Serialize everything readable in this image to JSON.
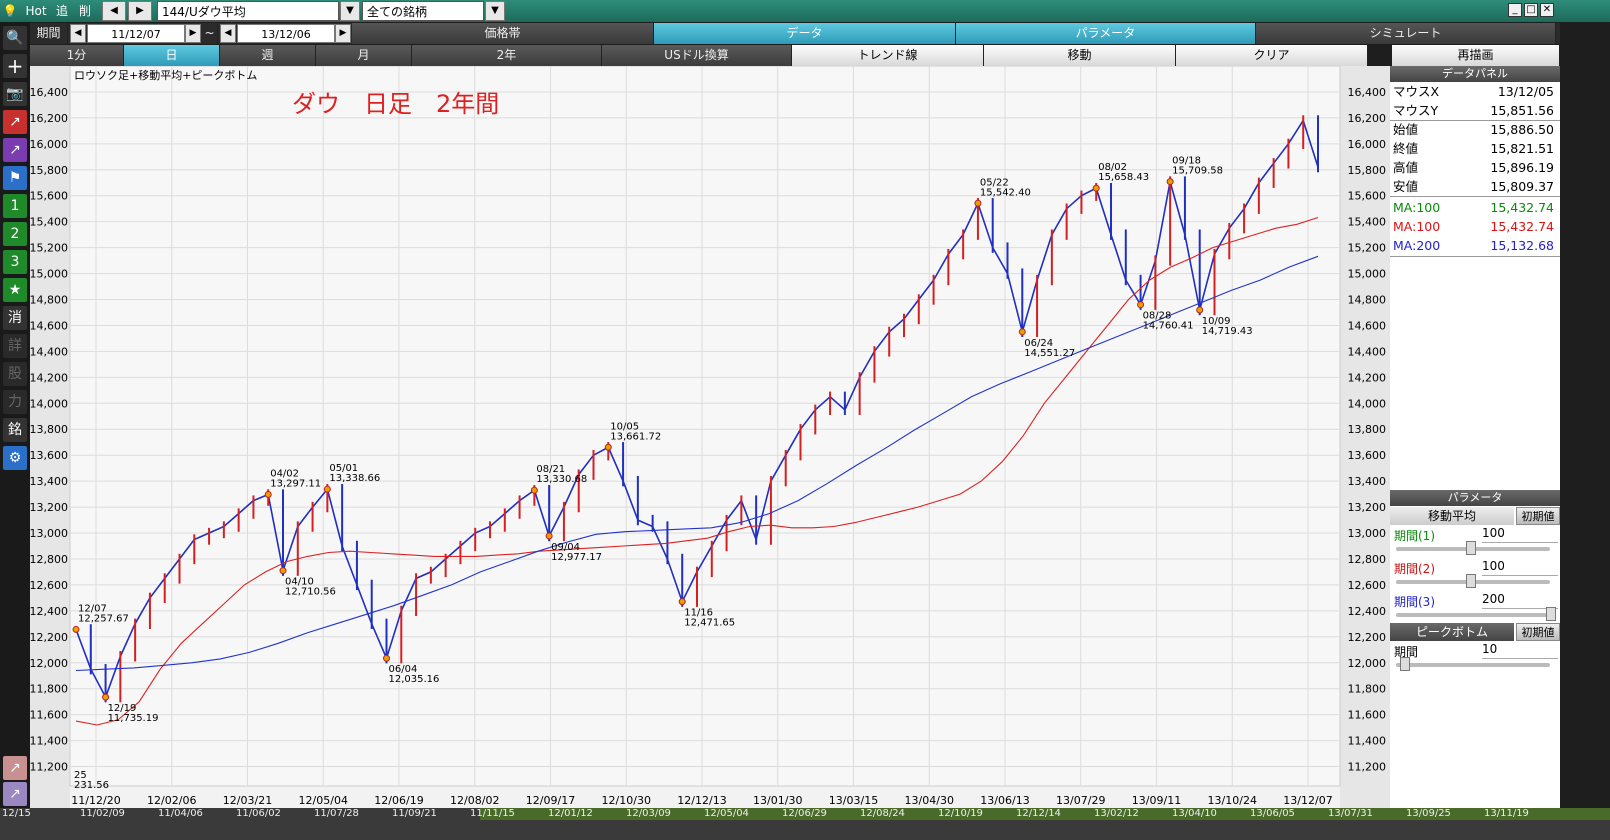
{
  "topbar": {
    "hot": "Hot",
    "add": "追",
    "del": "削",
    "symbol": "144/Uダウ平均",
    "universe": "全ての銘柄"
  },
  "row2": {
    "period_label": "期間",
    "start_date": "11/12/07",
    "tilde": "~",
    "end_date": "13/12/06",
    "tabs": [
      "価格帯",
      "データ",
      "パラメータ",
      "シミュレート"
    ]
  },
  "row3": {
    "buttons": [
      "1分",
      "日",
      "週",
      "月",
      "2年",
      "USドル換算",
      "トレンド線",
      "移動",
      "クリア",
      "再描画"
    ]
  },
  "left_toolbar": {
    "icons": [
      "search-icon",
      "plus-icon",
      "camera-icon",
      "chart-up-icon",
      "chart-compare-icon",
      "flag-icon"
    ],
    "labels": [
      "1",
      "2",
      "3",
      "★",
      "消",
      "詳",
      "股",
      "力",
      "銘",
      "⚙"
    ]
  },
  "chart_data": {
    "type": "line",
    "subtitle": "ロウソク足+移動平均+ピークボトム",
    "title": "ダウ　日足　2年間",
    "ylim": [
      11050,
      16600
    ],
    "yticks": [
      11200,
      11400,
      11600,
      11800,
      12000,
      12200,
      12400,
      12600,
      12800,
      13000,
      13200,
      13400,
      13600,
      13800,
      14000,
      14200,
      14400,
      14600,
      14800,
      15000,
      15200,
      15400,
      15600,
      15800,
      16000,
      16200,
      16400
    ],
    "xticks": [
      "11/12/20",
      "12/02/06",
      "12/03/21",
      "12/05/04",
      "12/06/19",
      "12/08/02",
      "12/09/17",
      "12/10/30",
      "12/12/13",
      "13/01/30",
      "13/03/15",
      "13/04/30",
      "13/06/13",
      "13/07/29",
      "13/09/11",
      "13/10/24",
      "13/12/07"
    ],
    "series": [
      {
        "name": "price",
        "color": "#1f2fbf",
        "values": [
          12257,
          11950,
          11735,
          12050,
          12300,
          12500,
          12650,
          12800,
          12950,
          13000,
          13050,
          13150,
          13250,
          13297,
          12710,
          13050,
          13200,
          13338,
          12900,
          12600,
          12300,
          12035,
          12400,
          12650,
          12700,
          12800,
          12900,
          13000,
          13050,
          13150,
          13250,
          13330,
          12977,
          13200,
          13450,
          13600,
          13661,
          13400,
          13100,
          13050,
          12800,
          12471,
          12700,
          12900,
          13100,
          13250,
          12950,
          13400,
          13600,
          13800,
          13950,
          14050,
          13950,
          14200,
          14400,
          14550,
          14650,
          14800,
          14950,
          15150,
          15300,
          15542,
          15200,
          15000,
          14551,
          14950,
          15300,
          15500,
          15600,
          15658,
          15300,
          14950,
          14760,
          15100,
          15709,
          15300,
          14719,
          15150,
          15350,
          15500,
          15700,
          15850,
          16000,
          16180,
          15821
        ]
      },
      {
        "name": "MA:100",
        "color": "#dd2222",
        "values": [
          11550,
          11520,
          11560,
          11700,
          11950,
          12150,
          12300,
          12450,
          12600,
          12700,
          12780,
          12820,
          12850,
          12860,
          12850,
          12840,
          12830,
          12820,
          12820,
          12820,
          12830,
          12840,
          12860,
          12870,
          12880,
          12890,
          12900,
          12910,
          12920,
          12940,
          12960,
          13010,
          13050,
          13060,
          13040,
          13040,
          13050,
          13080,
          13120,
          13160,
          13200,
          13250,
          13300,
          13400,
          13550,
          13750,
          14000,
          14200,
          14400,
          14600,
          14800,
          14950,
          15050,
          15120,
          15200,
          15250,
          15300,
          15350,
          15380,
          15432
        ]
      },
      {
        "name": "MA:200",
        "color": "#2233cc",
        "values": [
          11940,
          11950,
          11960,
          11980,
          12000,
          12030,
          12080,
          12150,
          12230,
          12300,
          12370,
          12440,
          12520,
          12600,
          12700,
          12780,
          12860,
          12930,
          12990,
          13010,
          13020,
          13030,
          13040,
          13080,
          13150,
          13250,
          13380,
          13520,
          13650,
          13790,
          13920,
          14050,
          14150,
          14240,
          14330,
          14420,
          14510,
          14600,
          14690,
          14780,
          14870,
          14950,
          15050,
          15133
        ]
      }
    ],
    "peaks": [
      {
        "date": "12/07",
        "value": "12,257.67"
      },
      {
        "date": "12/19",
        "value": "11,735.19"
      },
      {
        "date": "04/02",
        "value": "13,297.11"
      },
      {
        "date": "04/10",
        "value": "12,710.56"
      },
      {
        "date": "05/01",
        "value": "13,338.66"
      },
      {
        "date": "06/04",
        "value": "12,035.16"
      },
      {
        "date": "08/21",
        "value": "13,330.68"
      },
      {
        "date": "09/04",
        "value": "12,977.17"
      },
      {
        "date": "10/05",
        "value": "13,661.72"
      },
      {
        "date": "11/16",
        "value": "12,471.65"
      },
      {
        "date": "05/22",
        "value": "15,542.40"
      },
      {
        "date": "06/24",
        "value": "14,551.27"
      },
      {
        "date": "08/02",
        "value": "15,658.43"
      },
      {
        "date": "08/28",
        "value": "14,760.41"
      },
      {
        "date": "09/18",
        "value": "15,709.58"
      },
      {
        "date": "10/09",
        "value": "14,719.43"
      }
    ],
    "corner_text": [
      "25",
      "231.56"
    ]
  },
  "panel": {
    "header": "データパネル",
    "rows": [
      {
        "k": "マウスX",
        "v": "13/12/05",
        "color": "#000000"
      },
      {
        "k": "マウスY",
        "v": "15,851.56",
        "color": "#000000"
      },
      {
        "k": "始値",
        "v": "15,886.50",
        "color": "#000000"
      },
      {
        "k": "終値",
        "v": "15,821.51",
        "color": "#000000"
      },
      {
        "k": "高値",
        "v": "15,896.19",
        "color": "#000000"
      },
      {
        "k": "安値",
        "v": "15,809.37",
        "color": "#000000"
      },
      {
        "k": "MA:100",
        "v": "15,432.74",
        "color": "#0a8a0a"
      },
      {
        "k": "MA:100",
        "v": "15,432.74",
        "color": "#dd1111"
      },
      {
        "k": "MA:200",
        "v": "15,132.68",
        "color": "#2222cc"
      }
    ],
    "param_header": "パラメータ",
    "ma_label": "移動平均",
    "reset_label": "初期値",
    "period1_label": "期間(1)",
    "period1_value": "100",
    "period2_label": "期間(2)",
    "period2_value": "100",
    "period3_label": "期間(3)",
    "period3_value": "200",
    "peak_label": "ピークボトム",
    "peak_reset": "初期値",
    "peak_period_label": "期間",
    "peak_period_value": "10"
  },
  "bottom_ticks": [
    "12/15",
    "11/02/09",
    "11/04/06",
    "11/06/02",
    "11/07/28",
    "11/09/21",
    "11/11/15",
    "12/01/12",
    "12/03/09",
    "12/05/04",
    "12/06/29",
    "12/08/24",
    "12/10/19",
    "12/12/14",
    "13/02/12",
    "13/04/10",
    "13/06/05",
    "13/07/31",
    "13/09/25",
    "13/11/19"
  ]
}
